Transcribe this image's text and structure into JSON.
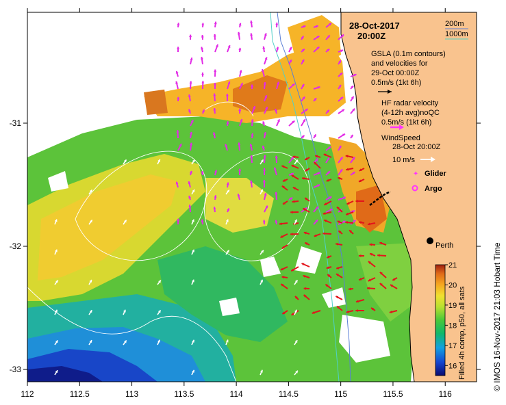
{
  "header": {
    "date": "28-Oct-2017",
    "time": "20:00Z"
  },
  "depth_legend": {
    "contour_200": "200m",
    "contour_1000": "1000m",
    "color_200": "#5a7fd6",
    "color_1000": "#4fd0c8"
  },
  "gsla_legend": {
    "line1": "GSLA (0.1m contours)",
    "line2": "and velocities for",
    "line3": "29-Oct 00:00Z",
    "scale": "0.5m/s (1kt 6h)"
  },
  "hf_legend": {
    "line1": "HF radar velocity",
    "line2": "(4-12h avg)noQC",
    "scale": "0.5m/s (1kt 6h)",
    "color": "#ff33ff"
  },
  "wind_legend": {
    "line1": "WindSpeed",
    "line2": "28-Oct 20:00Z",
    "scale": "10 m/s"
  },
  "markers": {
    "glider": "Glider",
    "argo": "Argo"
  },
  "place": {
    "perth": "Perth"
  },
  "axes": {
    "x_ticks": [
      "112",
      "112.5",
      "113",
      "113.5",
      "114",
      "114.5",
      "115",
      "115.5",
      "116"
    ],
    "y_ticks": [
      "-31",
      "-32",
      "-33"
    ]
  },
  "colorbar": {
    "ticks": [
      "16",
      "17",
      "18",
      "19",
      "20",
      "21"
    ],
    "label": "Filled 4h comp, p50, all sats",
    "min": 15.5,
    "max": 21
  },
  "credit": "© IMOS 16-Nov-2017 21:03 Hobart Time",
  "colors": {
    "land": "#f9c38e",
    "warm": "#d9771f",
    "cool": "#1a46c9",
    "arrow_red": "#e3141b",
    "arrow_magenta": "#e22ce6"
  }
}
